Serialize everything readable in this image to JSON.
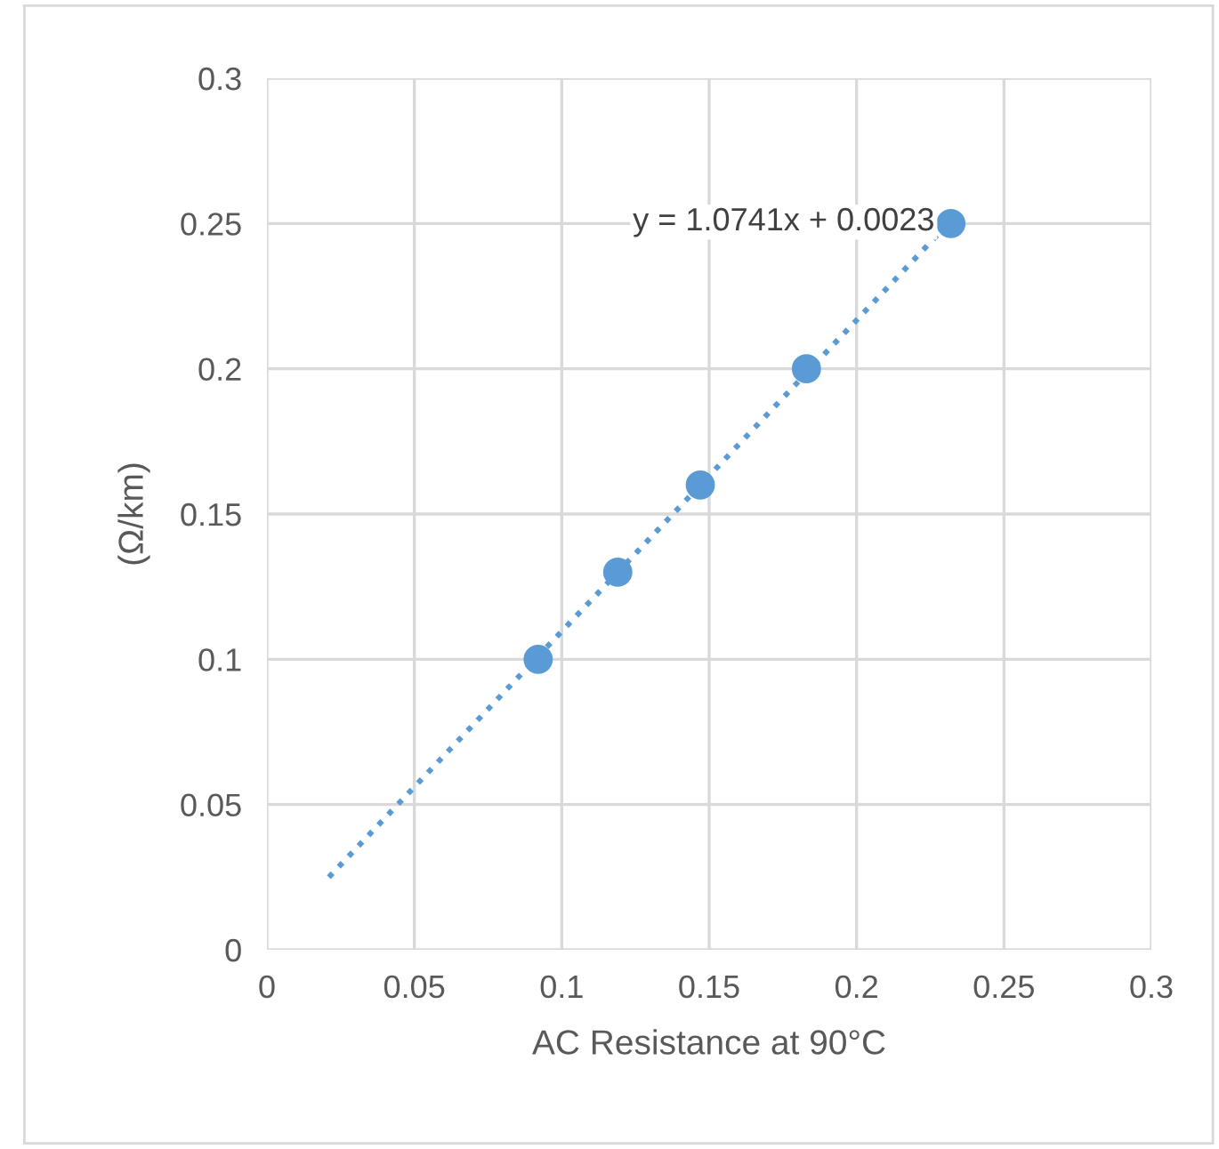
{
  "chart_data": {
    "type": "scatter",
    "xlabel": "AC Resistance at 90°C",
    "ylabel": "(Ω/km)",
    "series": [
      {
        "color": "#5b9bd5",
        "x": [
          0.092,
          0.119,
          0.147,
          0.183,
          0.232
        ],
        "values": [
          0.1,
          0.13,
          0.16,
          0.2,
          0.25
        ],
        "marker": "circle"
      },
      {
        "type": "line",
        "color": "#5b9bd5",
        "x": [
          0.021,
          0.232
        ],
        "values": [
          0.025,
          0.251
        ],
        "line_style": "dotted",
        "marker": "none"
      }
    ],
    "annotations": [
      "y = 1.0741x + 0.0023"
    ],
    "xlim": [
      0,
      0.3
    ],
    "ylim": [
      0,
      0.3
    ],
    "xticks": [
      0,
      0.05,
      0.1,
      0.15,
      0.2,
      0.25,
      0.3
    ],
    "yticks": [
      0,
      0.05,
      0.1,
      0.15,
      0.2,
      0.25,
      0.3
    ],
    "grid": true,
    "legend": false
  }
}
